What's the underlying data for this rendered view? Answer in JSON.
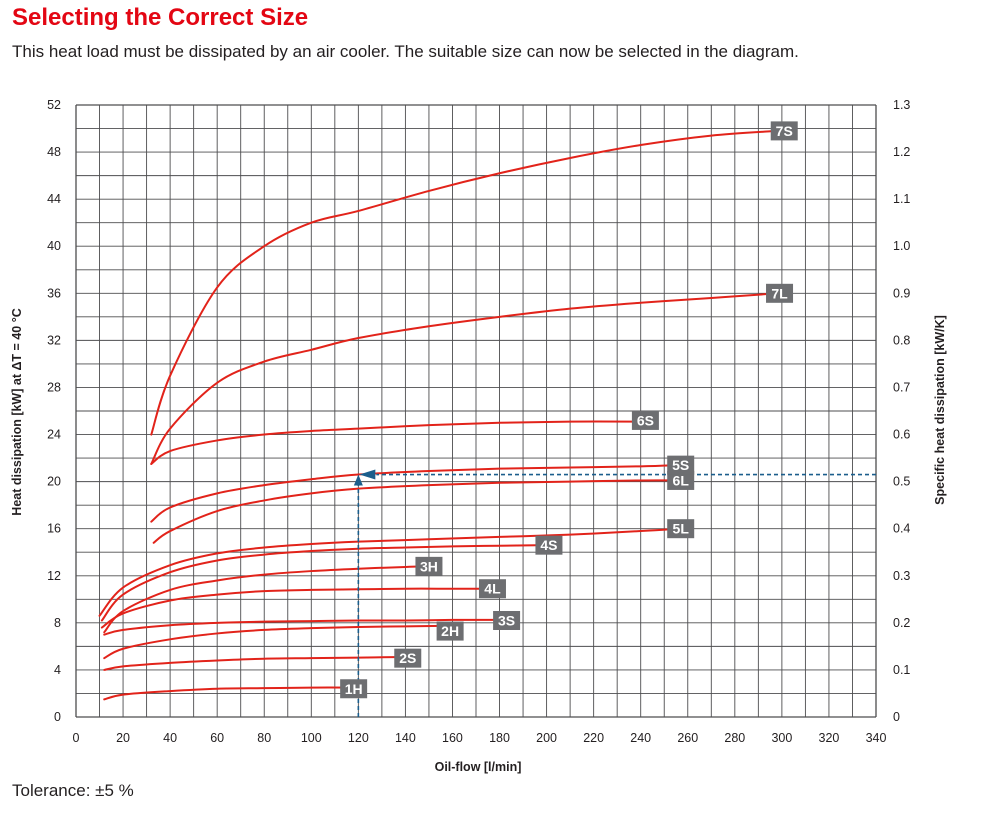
{
  "page": {
    "title": "Selecting the Correct Size",
    "subtitle": "This heat load must be dissipated by an air cooler. The suitable size can now be selected in the diagram.",
    "tolerance": "Tolerance: ±5 %"
  },
  "colors": {
    "title": "#e30613",
    "curve": "#e2231a",
    "label_bg": "#6d6e71",
    "marker": "#1b5e8c",
    "grid": "#4d4d4f"
  },
  "chart_data": {
    "type": "line",
    "xlabel": "Oil-flow [l/min]",
    "ylabel": "Heat dissipation [kW] at ΔT = 40 °C",
    "ylabel_right": "Specific heat dissipation [kW/K]",
    "xlim": [
      0,
      340
    ],
    "ylim": [
      0,
      52
    ],
    "ylim_right": [
      0,
      1.3
    ],
    "x_ticks": [
      "0",
      "20",
      "40",
      "60",
      "80",
      "100",
      "120",
      "140",
      "160",
      "180",
      "200",
      "220",
      "240",
      "260",
      "280",
      "300",
      "320",
      "340"
    ],
    "y_ticks": [
      "0",
      "4",
      "8",
      "12",
      "16",
      "20",
      "24",
      "28",
      "32",
      "36",
      "40",
      "44",
      "48",
      "52"
    ],
    "y_right_ticks": [
      "0",
      "0.1",
      "0.2",
      "0.3",
      "0.4",
      "0.5",
      "0.6",
      "0.7",
      "0.8",
      "0.9",
      "1.0",
      "1.1",
      "1.2",
      "1.3"
    ],
    "grid": true,
    "series": [
      {
        "name": "1H",
        "x": [
          12,
          20,
          40,
          60,
          80,
          100,
          120
        ],
        "y": [
          1.5,
          1.9,
          2.2,
          2.4,
          2.45,
          2.5,
          2.5
        ]
      },
      {
        "name": "2S",
        "x": [
          12,
          20,
          40,
          60,
          80,
          100,
          120,
          140
        ],
        "y": [
          4.0,
          4.3,
          4.6,
          4.8,
          4.95,
          5.0,
          5.05,
          5.1
        ]
      },
      {
        "name": "2H",
        "x": [
          12,
          20,
          40,
          60,
          80,
          100,
          120,
          140,
          160
        ],
        "y": [
          5.0,
          5.8,
          6.6,
          7.1,
          7.4,
          7.55,
          7.65,
          7.7,
          7.75
        ]
      },
      {
        "name": "3S",
        "x": [
          12,
          20,
          40,
          60,
          80,
          100,
          120,
          140,
          160,
          180
        ],
        "y": [
          7.0,
          7.4,
          7.8,
          8.0,
          8.1,
          8.15,
          8.2,
          8.2,
          8.25,
          8.25
        ]
      },
      {
        "name": "4L",
        "x": [
          11,
          20,
          40,
          60,
          80,
          100,
          120,
          140,
          160,
          180
        ],
        "y": [
          7.6,
          8.8,
          9.9,
          10.4,
          10.7,
          10.8,
          10.85,
          10.9,
          10.9,
          10.9
        ]
      },
      {
        "name": "3H",
        "x": [
          12,
          20,
          40,
          60,
          80,
          100,
          120,
          140,
          150
        ],
        "y": [
          7.2,
          9.0,
          10.8,
          11.6,
          12.1,
          12.4,
          12.6,
          12.75,
          12.8
        ]
      },
      {
        "name": "4S",
        "x": [
          11,
          20,
          40,
          60,
          80,
          100,
          120,
          140,
          160,
          180,
          200
        ],
        "y": [
          8.2,
          10.4,
          12.3,
          13.3,
          13.8,
          14.1,
          14.3,
          14.4,
          14.5,
          14.55,
          14.6
        ]
      },
      {
        "name": "5L",
        "x": [
          10,
          20,
          40,
          60,
          80,
          100,
          120,
          150,
          180,
          210,
          240,
          256
        ],
        "y": [
          8.6,
          11.0,
          12.9,
          13.9,
          14.4,
          14.7,
          14.9,
          15.1,
          15.3,
          15.5,
          15.8,
          16.0
        ]
      },
      {
        "name": "6L",
        "x": [
          33,
          40,
          60,
          80,
          100,
          120,
          150,
          180,
          210,
          240,
          256
        ],
        "y": [
          14.8,
          15.8,
          17.5,
          18.4,
          19.0,
          19.4,
          19.7,
          19.9,
          20.0,
          20.1,
          20.1
        ]
      },
      {
        "name": "5S",
        "x": [
          32,
          40,
          60,
          80,
          100,
          120,
          150,
          180,
          210,
          240,
          256
        ],
        "y": [
          16.6,
          17.8,
          19.0,
          19.7,
          20.2,
          20.6,
          20.9,
          21.1,
          21.2,
          21.3,
          21.4
        ]
      },
      {
        "name": "6S",
        "x": [
          32,
          40,
          60,
          80,
          100,
          120,
          150,
          180,
          210,
          240
        ],
        "y": [
          21.5,
          22.6,
          23.5,
          24.0,
          24.3,
          24.5,
          24.8,
          25.0,
          25.1,
          25.1
        ]
      },
      {
        "name": "7L",
        "x": [
          32,
          40,
          60,
          80,
          100,
          120,
          150,
          180,
          210,
          240,
          270,
          298
        ],
        "y": [
          21.5,
          24.5,
          28.4,
          30.2,
          31.2,
          32.2,
          33.2,
          34.0,
          34.7,
          35.2,
          35.6,
          36.0
        ]
      },
      {
        "name": "7S",
        "x": [
          32,
          40,
          60,
          80,
          100,
          120,
          150,
          180,
          210,
          240,
          270,
          298
        ],
        "y": [
          24.0,
          29.0,
          36.5,
          40.0,
          42.0,
          43.0,
          44.7,
          46.2,
          47.5,
          48.6,
          49.4,
          49.8
        ]
      }
    ],
    "label_points": {
      "1H": [
        118,
        2.4
      ],
      "2S": [
        141,
        5.0
      ],
      "2H": [
        159,
        7.3
      ],
      "3S": [
        183,
        8.2
      ],
      "4L": [
        177,
        10.9
      ],
      "3H": [
        150,
        12.8
      ],
      "4S": [
        201,
        14.6
      ],
      "5L": [
        257,
        16.0
      ],
      "6L": [
        257,
        20.1
      ],
      "5S": [
        257,
        21.4
      ],
      "6S": [
        242,
        25.2
      ],
      "7L": [
        299,
        36.0
      ],
      "7S": [
        301,
        49.8
      ]
    },
    "example": {
      "oil_flow": 120,
      "heat_dissipation": 20.6,
      "extends_to_x": 340
    }
  }
}
